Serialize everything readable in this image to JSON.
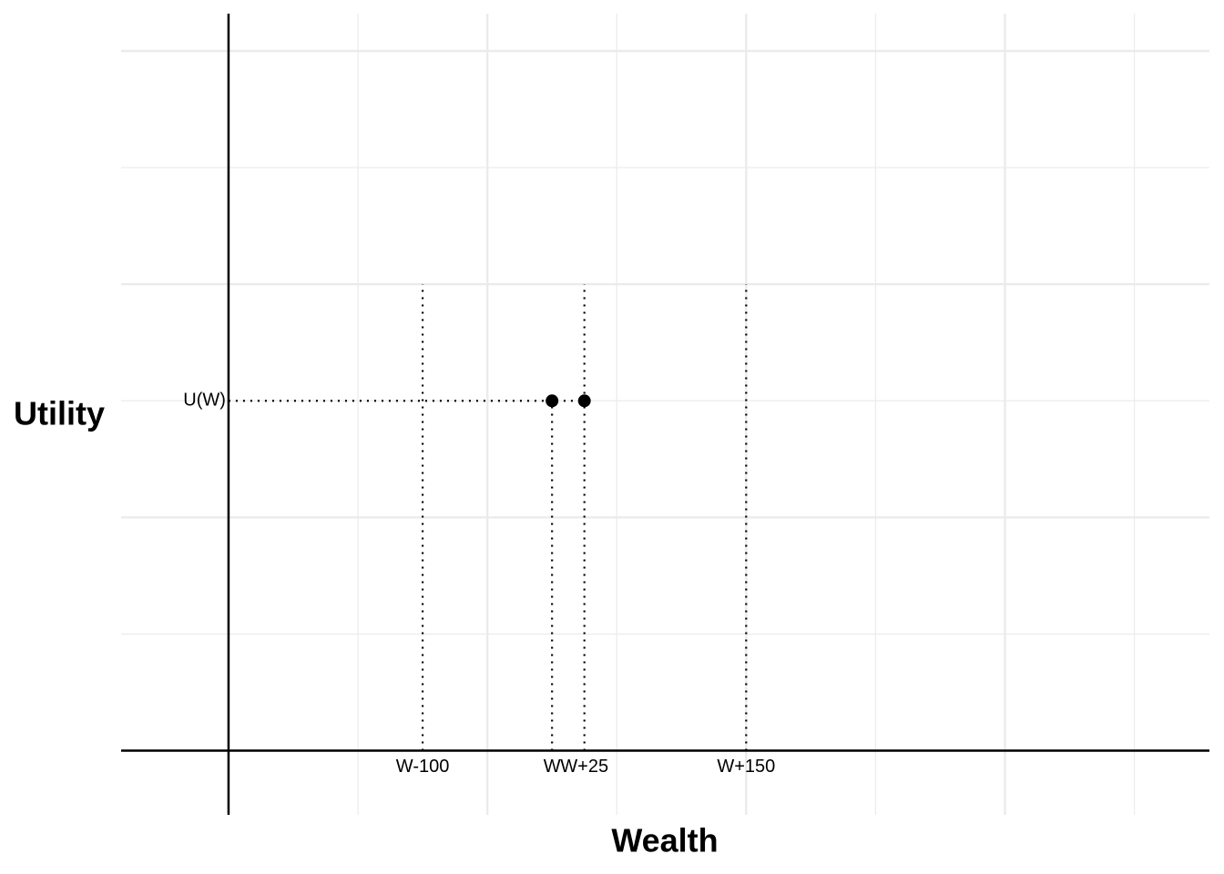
{
  "chart_data": {
    "type": "scatter",
    "xlabel": "Wealth",
    "ylabel": "Utility",
    "x": [
      250,
      275
    ],
    "y": [
      3,
      3
    ],
    "color": "#000000",
    "xlim": [
      -83,
      758
    ],
    "ylim": [
      -0.55,
      6.32
    ],
    "xticks": [
      {
        "value": 150,
        "label": "W-100"
      },
      {
        "value": 250,
        "label": "W"
      },
      {
        "value": 275,
        "label": "W+25"
      },
      {
        "value": 400,
        "label": "W+150"
      }
    ],
    "yticks": [
      {
        "value": 3,
        "label": "U(W)"
      }
    ],
    "xgrid_major": [
      200,
      400,
      600
    ],
    "xgrid_minor": [
      100,
      300,
      500,
      700
    ],
    "ygrid_major": [
      2,
      4,
      6
    ],
    "ygrid_minor": [
      1,
      3,
      5
    ],
    "axis_at": [
      0,
      0
    ],
    "vlines": [
      {
        "x": 150,
        "ymax": 4
      },
      {
        "x": 250,
        "ymax": 3
      },
      {
        "x": 275,
        "ymax": 4
      },
      {
        "x": 400,
        "ymax": 4
      }
    ],
    "hline": {
      "y": 3,
      "xmax": 275
    },
    "grid": true
  }
}
